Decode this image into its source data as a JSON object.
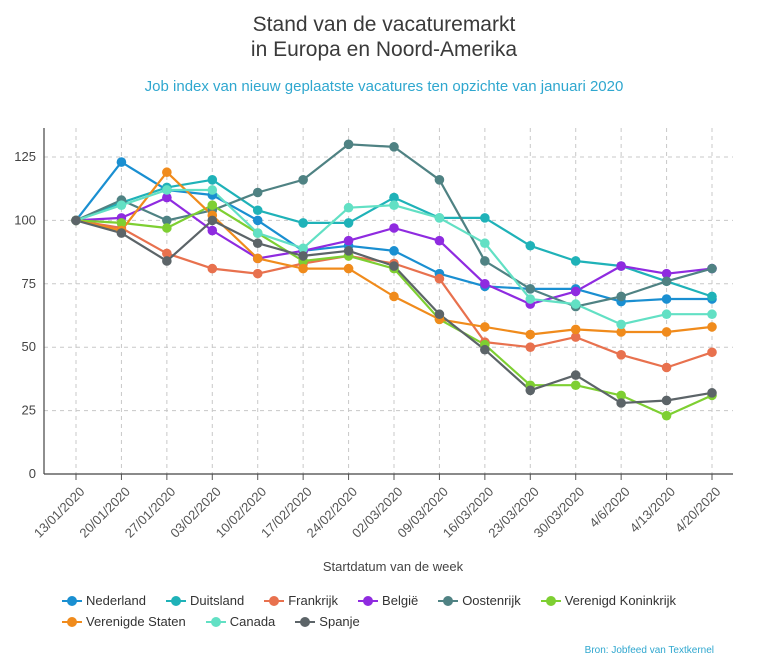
{
  "header": {
    "title_line1": "Stand van de vacaturemarkt",
    "title_line2": "in Europa en Noord-Amerika",
    "subtitle": "Job index van nieuw geplaatste vacatures ten opzichte van januari 2020"
  },
  "source": "Bron: Jobfeed van Textkernel",
  "chart_data": {
    "type": "line",
    "xlabel": "Startdatum van de week",
    "ylabel": "",
    "ylim": [
      0,
      137
    ],
    "yticks": [
      0,
      25,
      50,
      75,
      100,
      125
    ],
    "grid": true,
    "legend_position": "bottom",
    "x": [
      "13/01/2020",
      "20/01/2020",
      "27/01/2020",
      "03/02/2020",
      "10/02/2020",
      "17/02/2020",
      "24/02/2020",
      "02/03/2020",
      "09/03/2020",
      "16/03/2020",
      "23/03/2020",
      "30/03/2020",
      "4/6/2020",
      "4/13/2020",
      "4/20/2020"
    ],
    "series": [
      {
        "name": "Nederland",
        "color": "#1a8fd1",
        "values": [
          100,
          123,
          112,
          110,
          100,
          88,
          90,
          88,
          79,
          74,
          73,
          73,
          68,
          69,
          69
        ]
      },
      {
        "name": "Duitsland",
        "color": "#1fb2b8",
        "values": [
          100,
          107,
          113,
          116,
          104,
          99,
          99,
          109,
          101,
          101,
          90,
          84,
          82,
          76,
          70
        ]
      },
      {
        "name": "Frankrijk",
        "color": "#e8714e",
        "values": [
          100,
          97,
          87,
          81,
          79,
          83,
          86,
          83,
          77,
          52,
          50,
          54,
          47,
          42,
          48
        ]
      },
      {
        "name": "België",
        "color": "#8f2be0",
        "values": [
          100,
          101,
          109,
          96,
          85,
          88,
          92,
          97,
          92,
          75,
          67,
          72,
          82,
          79,
          81
        ]
      },
      {
        "name": "Oostenrijk",
        "color": "#4f8283",
        "values": [
          100,
          108,
          100,
          104,
          111,
          116,
          130,
          129,
          116,
          84,
          73,
          66,
          70,
          76,
          81
        ]
      },
      {
        "name": "Verenigd Koninkrijk",
        "color": "#7ecf32",
        "values": [
          100,
          99,
          97,
          106,
          95,
          84,
          86,
          81,
          61,
          51,
          35,
          35,
          31,
          23,
          31
        ]
      },
      {
        "name": "Verenigde Staten",
        "color": "#f08b1c",
        "values": [
          100,
          96,
          119,
          102,
          85,
          81,
          81,
          70,
          61,
          58,
          55,
          57,
          56,
          56,
          58
        ]
      },
      {
        "name": "Canada",
        "color": "#62e0c4",
        "values": [
          100,
          106,
          112,
          112,
          95,
          89,
          105,
          106,
          101,
          91,
          69,
          67,
          59,
          63,
          63
        ]
      },
      {
        "name": "Spanje",
        "color": "#5c6468",
        "values": [
          100,
          95,
          84,
          100,
          91,
          86,
          88,
          82,
          63,
          49,
          33,
          39,
          28,
          29,
          32
        ]
      }
    ]
  }
}
